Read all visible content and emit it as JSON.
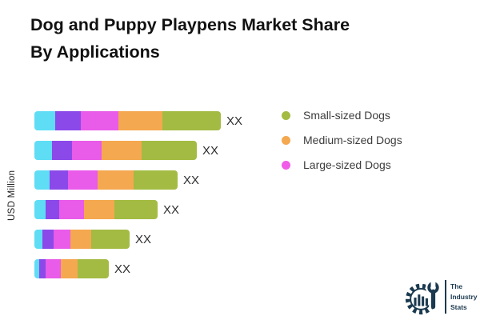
{
  "header": {
    "title_line1": "Dog and Puppy Playpens Market Share",
    "title_line2": "By Applications"
  },
  "axis": {
    "y_label": "USD Million"
  },
  "chart_data": {
    "type": "bar",
    "orientation": "horizontal",
    "stacked": true,
    "title": "Dog and Puppy Playpens Market Share By Applications",
    "ylabel": "USD Million",
    "xlabel": "",
    "grid": false,
    "axis_tick_labels_visible": false,
    "values_note": "Numeric values are masked as 'XX' on the chart; series values are relative segment widths in pixels read from the image.",
    "categories": [
      "row-1",
      "row-2",
      "row-3",
      "row-4",
      "row-5",
      "row-6"
    ],
    "bar_value_labels": [
      "XX",
      "XX",
      "XX",
      "XX",
      "XX",
      "XX"
    ],
    "series": [
      {
        "name": "unlabeled-series-cyan",
        "color": "#5EDDF5",
        "in_legend": false,
        "values": [
          26,
          22,
          19,
          14,
          10,
          6
        ]
      },
      {
        "name": "unlabeled-series-purple",
        "color": "#8B49E9",
        "in_legend": false,
        "values": [
          32,
          25,
          23,
          17,
          14,
          8
        ]
      },
      {
        "name": "Large-sized Dogs",
        "color": "#E95BE9",
        "in_legend": true,
        "values": [
          47,
          37,
          37,
          31,
          21,
          19
        ]
      },
      {
        "name": "Medium-sized Dogs",
        "color": "#F4A84F",
        "in_legend": true,
        "values": [
          55,
          50,
          45,
          38,
          26,
          21
        ]
      },
      {
        "name": "Small-sized Dogs",
        "color": "#A3BB43",
        "in_legend": true,
        "values": [
          73,
          69,
          55,
          54,
          48,
          39
        ]
      }
    ],
    "legend": {
      "position": "right",
      "items": [
        {
          "label": "Small-sized Dogs",
          "color": "#A3BB43"
        },
        {
          "label": "Medium-sized Dogs",
          "color": "#F4A84F"
        },
        {
          "label": "Large-sized Dogs",
          "color": "#F05CE8"
        }
      ]
    }
  },
  "logo": {
    "line1": "The",
    "line2": "Industry",
    "line3": "Stats",
    "color": "#1C3A4F"
  }
}
